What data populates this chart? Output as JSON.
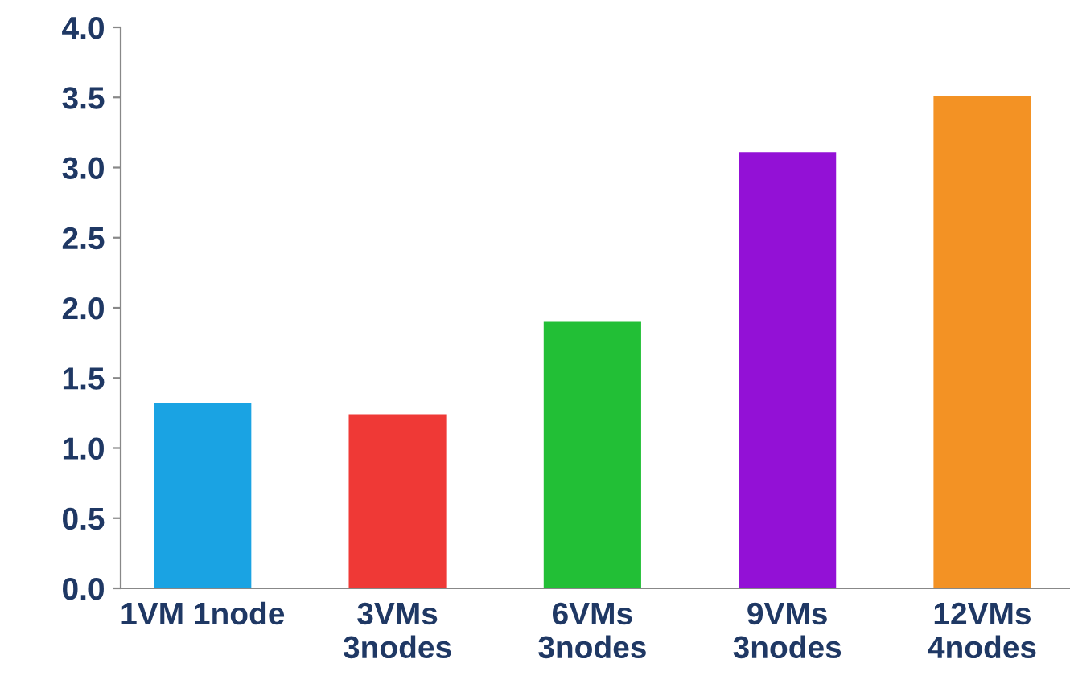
{
  "chart_data": {
    "type": "bar",
    "categories": [
      "1VM 1node",
      "3VMs\n3nodes",
      "6VMs\n3nodes",
      "9VMs\n3nodes",
      "12VMs\n4nodes"
    ],
    "values": [
      1.32,
      1.24,
      1.9,
      3.11,
      3.51
    ],
    "colors": [
      "#1aa3e3",
      "#ef3936",
      "#22bf36",
      "#9311d6",
      "#f39224"
    ],
    "ylim": [
      0,
      4
    ],
    "yticks": [
      {
        "value": 0,
        "label": "0.0"
      },
      {
        "value": 0.5,
        "label": "0.5"
      },
      {
        "value": 1,
        "label": "1.0"
      },
      {
        "value": 1.5,
        "label": "1.5"
      },
      {
        "value": 2,
        "label": "2.0"
      },
      {
        "value": 2.5,
        "label": "2.5"
      },
      {
        "value": 3,
        "label": "3.0"
      },
      {
        "value": 3.5,
        "label": "3.5"
      },
      {
        "value": 4,
        "label": "4.0"
      }
    ],
    "grid": false,
    "legend": false
  }
}
